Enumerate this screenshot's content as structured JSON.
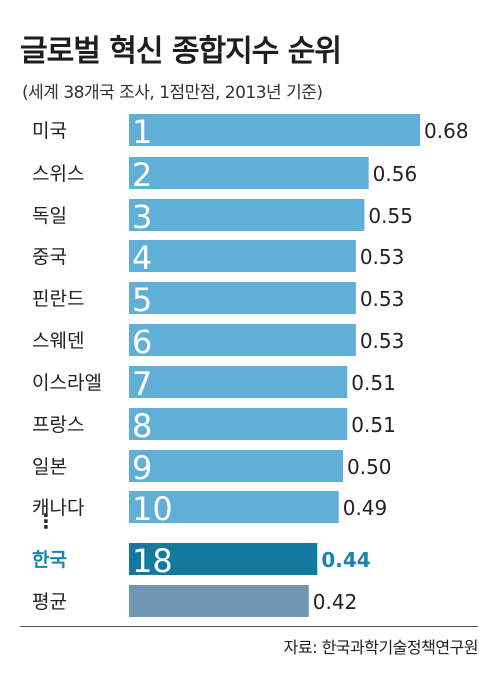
{
  "title": "글로벌 혁신 종합지수 순위",
  "subtitle": "(세계 38개국 조사, 1점만점, 2013년 기준)",
  "source": "자료: 한국과학기술정책연구원",
  "ellipsis": "⋮",
  "colors": {
    "bar": "#5fafd6",
    "highlight_bar": "#14799e",
    "highlight_text": "#1a83b0",
    "average_bar": "#6f97b3",
    "rank_text": "#ffffff"
  },
  "chart_data": {
    "type": "bar",
    "orientation": "horizontal",
    "title": "글로벌 혁신 종합지수 순위",
    "subtitle": "(세계 38개국 조사, 1점만점, 2013년 기준)",
    "categories": [
      "미국",
      "스위스",
      "독일",
      "중국",
      "핀란드",
      "스웨덴",
      "이스라엘",
      "프랑스",
      "일본",
      "캐나다",
      "한국",
      "평균"
    ],
    "ranks": [
      "1",
      "2",
      "3",
      "4",
      "5",
      "6",
      "7",
      "8",
      "9",
      "10",
      "18",
      ""
    ],
    "values": [
      0.68,
      0.56,
      0.55,
      0.53,
      0.53,
      0.53,
      0.51,
      0.51,
      0.5,
      0.49,
      0.44,
      0.42
    ],
    "value_labels": [
      "0.68",
      "0.56",
      "0.55",
      "0.53",
      "0.53",
      "0.53",
      "0.51",
      "0.51",
      "0.50",
      "0.49",
      "0.44",
      "0.42"
    ],
    "highlight": "한국",
    "average": "평균",
    "xlim": [
      0,
      1
    ]
  }
}
